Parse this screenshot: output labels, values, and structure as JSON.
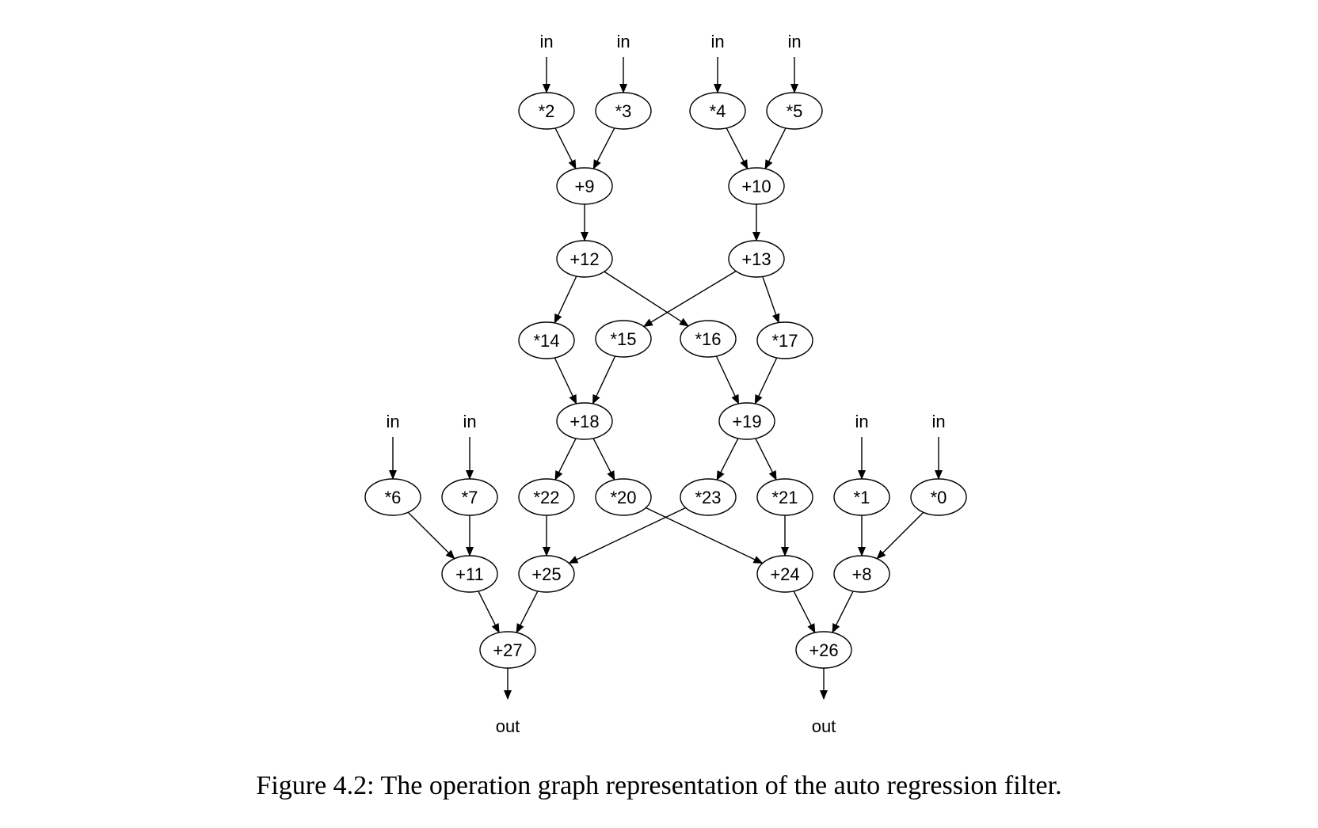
{
  "caption": "Figure 4.2: The operation graph representation of the auto regression filter.",
  "terminals": [
    {
      "id": "in2",
      "label": "in"
    },
    {
      "id": "in3",
      "label": "in"
    },
    {
      "id": "in4",
      "label": "in"
    },
    {
      "id": "in5",
      "label": "in"
    },
    {
      "id": "in6",
      "label": "in"
    },
    {
      "id": "in7",
      "label": "in"
    },
    {
      "id": "in1",
      "label": "in"
    },
    {
      "id": "in0",
      "label": "in"
    },
    {
      "id": "out27",
      "label": "out"
    },
    {
      "id": "out26",
      "label": "out"
    }
  ],
  "nodes": [
    {
      "id": "n2",
      "label": "*2"
    },
    {
      "id": "n3",
      "label": "*3"
    },
    {
      "id": "n4",
      "label": "*4"
    },
    {
      "id": "n5",
      "label": "*5"
    },
    {
      "id": "n9",
      "label": "+9"
    },
    {
      "id": "n10",
      "label": "+10"
    },
    {
      "id": "n12",
      "label": "+12"
    },
    {
      "id": "n13",
      "label": "+13"
    },
    {
      "id": "n14",
      "label": "*14"
    },
    {
      "id": "n15",
      "label": "*15"
    },
    {
      "id": "n16",
      "label": "*16"
    },
    {
      "id": "n17",
      "label": "*17"
    },
    {
      "id": "n18",
      "label": "+18"
    },
    {
      "id": "n19",
      "label": "+19"
    },
    {
      "id": "n6",
      "label": "*6"
    },
    {
      "id": "n7",
      "label": "*7"
    },
    {
      "id": "n22",
      "label": "*22"
    },
    {
      "id": "n20",
      "label": "*20"
    },
    {
      "id": "n23",
      "label": "*23"
    },
    {
      "id": "n21",
      "label": "*21"
    },
    {
      "id": "n1",
      "label": "*1"
    },
    {
      "id": "n0",
      "label": "*0"
    },
    {
      "id": "n11",
      "label": "+11"
    },
    {
      "id": "n25",
      "label": "+25"
    },
    {
      "id": "n24",
      "label": "+24"
    },
    {
      "id": "n8",
      "label": "+8"
    },
    {
      "id": "n27",
      "label": "+27"
    },
    {
      "id": "n26",
      "label": "+26"
    }
  ],
  "edges": [
    [
      "in2",
      "n2"
    ],
    [
      "in3",
      "n3"
    ],
    [
      "in4",
      "n4"
    ],
    [
      "in5",
      "n5"
    ],
    [
      "n2",
      "n9"
    ],
    [
      "n3",
      "n9"
    ],
    [
      "n4",
      "n10"
    ],
    [
      "n5",
      "n10"
    ],
    [
      "n9",
      "n12"
    ],
    [
      "n10",
      "n13"
    ],
    [
      "n12",
      "n14"
    ],
    [
      "n12",
      "n16"
    ],
    [
      "n13",
      "n15"
    ],
    [
      "n13",
      "n17"
    ],
    [
      "n14",
      "n18"
    ],
    [
      "n15",
      "n18"
    ],
    [
      "n16",
      "n19"
    ],
    [
      "n17",
      "n19"
    ],
    [
      "n18",
      "n22"
    ],
    [
      "n18",
      "n20"
    ],
    [
      "n19",
      "n23"
    ],
    [
      "n19",
      "n21"
    ],
    [
      "in6",
      "n6"
    ],
    [
      "in7",
      "n7"
    ],
    [
      "in1",
      "n1"
    ],
    [
      "in0",
      "n0"
    ],
    [
      "n6",
      "n11"
    ],
    [
      "n7",
      "n11"
    ],
    [
      "n22",
      "n25"
    ],
    [
      "n23",
      "n25"
    ],
    [
      "n20",
      "n24"
    ],
    [
      "n21",
      "n24"
    ],
    [
      "n1",
      "n8"
    ],
    [
      "n0",
      "n8"
    ],
    [
      "n11",
      "n27"
    ],
    [
      "n25",
      "n27"
    ],
    [
      "n24",
      "n26"
    ],
    [
      "n8",
      "n26"
    ],
    [
      "n27",
      "out27"
    ],
    [
      "n26",
      "out26"
    ]
  ]
}
